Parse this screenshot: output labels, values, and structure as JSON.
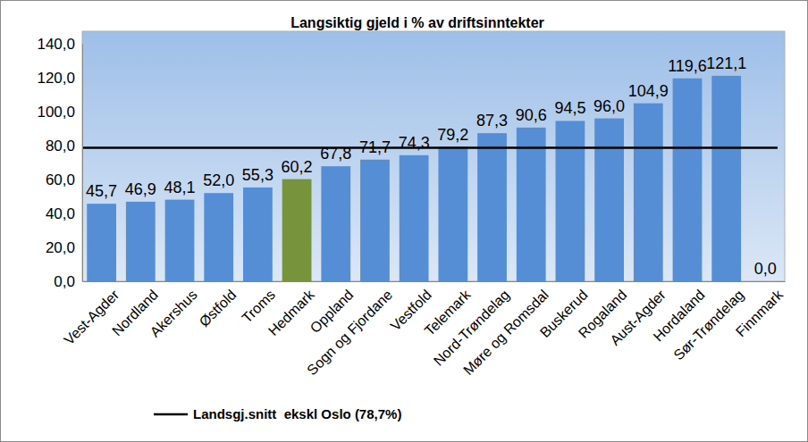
{
  "chart_data": {
    "type": "bar",
    "title": "Langsiktig gjeld i % av driftsinntekter",
    "categories": [
      "Vest-Agder",
      "Nordland",
      "Akershus",
      "Østfold",
      "Troms",
      "Hedmark",
      "Oppland",
      "Sogn og Fjordane",
      "Vestfold",
      "Telemark",
      "Nord-Trøndelag",
      "Møre og Romsdal",
      "Buskerud",
      "Rogaland",
      "Aust-Agder",
      "Hordaland",
      "Sør-Trøndelag",
      "Finnmark"
    ],
    "values": [
      45.7,
      46.9,
      48.1,
      52.0,
      55.3,
      60.2,
      67.8,
      71.7,
      74.3,
      79.2,
      87.3,
      90.6,
      94.5,
      96.0,
      104.9,
      119.6,
      121.1,
      0.0
    ],
    "value_labels": [
      "45,7",
      "46,9",
      "48,1",
      "52,0",
      "55,3",
      "60,2",
      "67,8",
      "71,7",
      "74,3",
      "79,2",
      "87,3",
      "90,6",
      "94,5",
      "96,0",
      "104,9",
      "119,6",
      "121,1",
      "0,0"
    ],
    "colors": [
      "#558ed5",
      "#558ed5",
      "#558ed5",
      "#558ed5",
      "#558ed5",
      "#77933c",
      "#558ed5",
      "#558ed5",
      "#558ed5",
      "#558ed5",
      "#558ed5",
      "#558ed5",
      "#558ed5",
      "#558ed5",
      "#558ed5",
      "#558ed5",
      "#558ed5",
      "#558ed5"
    ],
    "data_labels": true,
    "grid": false,
    "ylim": [
      0,
      140
    ],
    "yticks": [
      {
        "value": 0,
        "label": "0,0"
      },
      {
        "value": 20,
        "label": "20,0"
      },
      {
        "value": 40,
        "label": "40,0"
      },
      {
        "value": 60,
        "label": "60,0"
      },
      {
        "value": 80,
        "label": "80,0"
      },
      {
        "value": 100,
        "label": "100,0"
      },
      {
        "value": 120,
        "label": "120,0"
      },
      {
        "value": 140,
        "label": "140,0"
      }
    ],
    "reference_line": {
      "value": 78.7,
      "name": "Landsgj.snitt  ekskl Oslo (78,7%)",
      "color": "#000000"
    },
    "legend": "bottom"
  }
}
